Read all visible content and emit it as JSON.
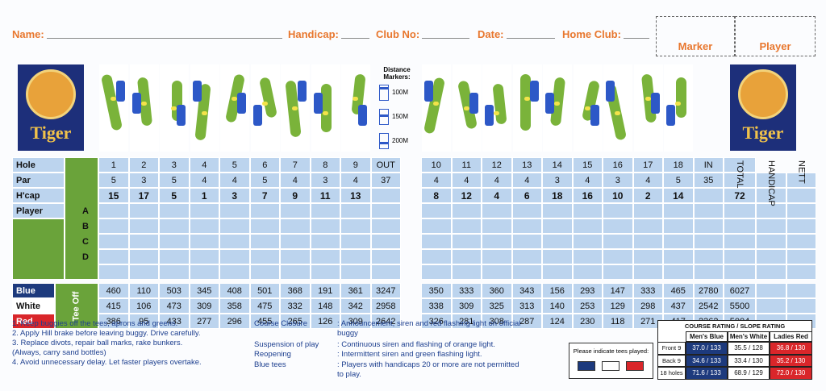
{
  "header": {
    "fields": [
      "Name:",
      "Handicap:",
      "Club No:",
      "Date:",
      "Home Club:"
    ],
    "marker": "Marker",
    "player": "Player"
  },
  "logo": "Tiger",
  "distance_markers": {
    "title": "Distance Markers:",
    "labels": [
      "100M",
      "150M",
      "200M"
    ]
  },
  "row_labels": {
    "hole": "Hole",
    "par": "Par",
    "hcap": "H'cap",
    "player": "Player",
    "players": [
      "A",
      "B",
      "C",
      "D"
    ],
    "tee_off": "Tee Off",
    "tees": [
      "Blue",
      "White",
      "Red"
    ]
  },
  "columns": {
    "front": [
      1,
      2,
      3,
      4,
      5,
      6,
      7,
      8,
      9
    ],
    "out": "OUT",
    "back": [
      10,
      11,
      12,
      13,
      14,
      15,
      16,
      17,
      18
    ],
    "in": "IN",
    "total": "TOTAL",
    "handicap": "HANDICAP",
    "nett": "NETT"
  },
  "par": {
    "front": [
      5,
      3,
      5,
      4,
      4,
      5,
      4,
      3,
      4
    ],
    "out": 37,
    "back": [
      4,
      4,
      4,
      4,
      3,
      4,
      3,
      4,
      5
    ],
    "in": 35
  },
  "hcap": {
    "front": [
      15,
      17,
      5,
      1,
      3,
      7,
      9,
      11,
      13
    ],
    "back": [
      8,
      12,
      4,
      6,
      18,
      16,
      10,
      2,
      14
    ],
    "total": 72
  },
  "tees": [
    {
      "front": [
        460,
        110,
        503,
        345,
        408,
        501,
        368,
        191,
        361
      ],
      "out": 3247,
      "back": [
        350,
        333,
        360,
        343,
        156,
        293,
        147,
        333,
        465
      ],
      "in": 2780,
      "total": 6027
    },
    {
      "front": [
        415,
        106,
        473,
        309,
        358,
        475,
        332,
        148,
        342
      ],
      "out": 2958,
      "back": [
        338,
        309,
        325,
        313,
        140,
        253,
        129,
        298,
        437
      ],
      "in": 2542,
      "total": 5500
    },
    {
      "front": [
        386,
        95,
        433,
        277,
        296,
        455,
        265,
        126,
        309
      ],
      "out": 2642,
      "back": [
        326,
        281,
        308,
        287,
        124,
        230,
        118,
        271,
        417
      ],
      "in": 2362,
      "total": 5004
    }
  ],
  "rules": [
    "1. Keep buggies off the tees, aprons and greens.",
    "2. Apply Hill brake before leaving buggy. Drive carefully.",
    "3. Replace divots, repair ball marks, rake bunkers.",
    "(Always, carry sand bottles)",
    "4. Avoid unnecessary delay. Let faster players overtake."
  ],
  "notices": [
    {
      "term": "Course Closure",
      "text": ": Announcement, siren and red flashing light on official buggy"
    },
    {
      "term": "Suspension of play",
      "text": ": Continuous siren and flashing of orange light."
    },
    {
      "term": "Reopening",
      "text": ": Intermittent siren and green flashing light."
    },
    {
      "term": "Blue tees",
      "text": ": Players with handicaps 20 or more are not permitted to play."
    }
  ],
  "tee_prompt": "Please indicate tees played:",
  "rating": {
    "title": "COURSE RATING / SLOPE RATING",
    "headers": [
      "Men's Blue",
      "Men's White",
      "Ladies Red"
    ],
    "rows": [
      {
        "label": "Front 9",
        "values": [
          "37.0 / 133",
          "35.5 / 128",
          "36.8 / 130"
        ]
      },
      {
        "label": "Back 9",
        "values": [
          "34.6 / 133",
          "33.4 / 130",
          "35.2 / 130"
        ]
      },
      {
        "label": "18 holes",
        "values": [
          "71.6 / 133",
          "68.9 / 129",
          "72.0 / 130"
        ]
      }
    ]
  }
}
